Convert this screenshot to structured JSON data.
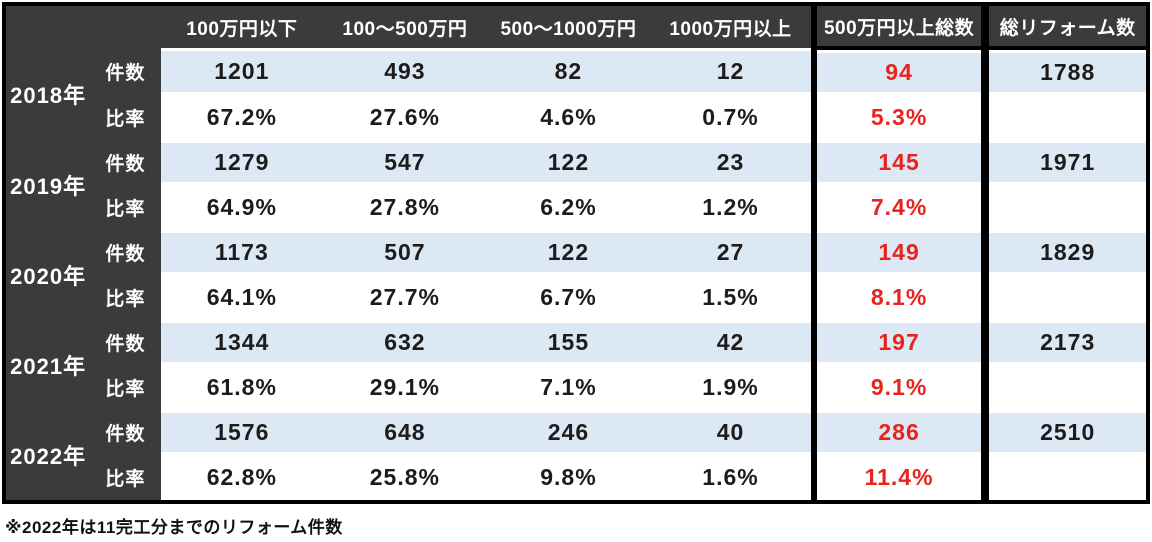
{
  "chart_data": {
    "type": "table",
    "columns": [
      "100万円以下",
      "100〜500万円",
      "500〜1000万円",
      "1000万円以上",
      "500万円以上総数",
      "総リフォーム数"
    ],
    "row_labels": {
      "count": "件数",
      "ratio": "比率"
    },
    "years": [
      {
        "year": "2018年",
        "count": [
          "1201",
          "493",
          "82",
          "12",
          "94",
          "1788"
        ],
        "ratio": [
          "67.2%",
          "27.6%",
          "4.6%",
          "0.7%",
          "5.3%",
          ""
        ]
      },
      {
        "year": "2019年",
        "count": [
          "1279",
          "547",
          "122",
          "23",
          "145",
          "1971"
        ],
        "ratio": [
          "64.9%",
          "27.8%",
          "6.2%",
          "1.2%",
          "7.4%",
          ""
        ]
      },
      {
        "year": "2020年",
        "count": [
          "1173",
          "507",
          "122",
          "27",
          "149",
          "1829"
        ],
        "ratio": [
          "64.1%",
          "27.7%",
          "6.7%",
          "1.5%",
          "8.1%",
          ""
        ]
      },
      {
        "year": "2021年",
        "count": [
          "1344",
          "632",
          "155",
          "42",
          "197",
          "2173"
        ],
        "ratio": [
          "61.8%",
          "29.1%",
          "7.1%",
          "1.9%",
          "9.1%",
          ""
        ]
      },
      {
        "year": "2022年",
        "count": [
          "1576",
          "648",
          "246",
          "40",
          "286",
          "2510"
        ],
        "ratio": [
          "62.8%",
          "25.8%",
          "9.8%",
          "1.6%",
          "11.4%",
          ""
        ]
      }
    ],
    "footnote": "※2022年は11完工分までのリフォーム件数",
    "highlight_column_index": 4,
    "layout": {
      "grid": "off",
      "stripe_rows": "count-rows"
    }
  },
  "colors": {
    "header_bg": "#3b3b3b",
    "stripe_blue": "#dce8f4",
    "accent_red": "#e8231e",
    "border_black": "#000000"
  }
}
